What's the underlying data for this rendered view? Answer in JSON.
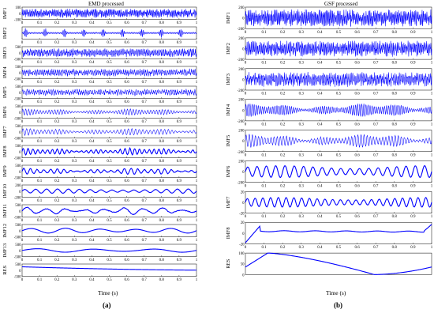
{
  "chart_data": [
    {
      "type": "line",
      "title": "EMD processed",
      "xlabel": "Time (s)",
      "caption": "(a)",
      "xlim": [
        0,
        1
      ],
      "xticks": [
        "0",
        "0.1",
        "0.2",
        "0.3",
        "0.4",
        "0.5",
        "0.6",
        "0.7",
        "0.8",
        "0.9",
        "1"
      ],
      "series_color": "#0000ff",
      "rows": [
        {
          "name": "IMF1",
          "ylim": [
            -100,
            100
          ],
          "yticks": [
            "100",
            "0",
            "-100"
          ],
          "cycles": 140,
          "amp": 0.75,
          "tick_labels": true,
          "signal": "noise"
        },
        {
          "name": "IMF2",
          "ylim": [
            -10,
            10
          ],
          "yticks": [],
          "cycles": 120,
          "amp": 0.85,
          "tick_labels": true,
          "signal": "bursts"
        },
        {
          "name": "IMF3",
          "ylim": [
            -500,
            500
          ],
          "yticks": [
            "500",
            "0",
            "-500"
          ],
          "cycles": 110,
          "amp": 0.7,
          "tick_labels": true,
          "signal": "noise"
        },
        {
          "name": "IMF4",
          "ylim": [
            -500,
            500
          ],
          "yticks": [
            "500",
            "0",
            "-500"
          ],
          "cycles": 95,
          "amp": 0.6,
          "tick_labels": true,
          "signal": "noise"
        },
        {
          "name": "IMF5",
          "ylim": [
            -500,
            500
          ],
          "yticks": [
            "500",
            "0",
            "-500"
          ],
          "cycles": 80,
          "amp": 0.55,
          "tick_labels": true,
          "signal": "noise"
        },
        {
          "name": "IMF6",
          "ylim": [
            -500,
            500
          ],
          "yticks": [
            "500",
            "0",
            "-500"
          ],
          "cycles": 60,
          "amp": 0.5,
          "tick_labels": true,
          "signal": "modulated"
        },
        {
          "name": "IMF7",
          "ylim": [
            -500,
            500
          ],
          "yticks": [
            "500",
            "0",
            "-500"
          ],
          "cycles": 48,
          "amp": 0.55,
          "tick_labels": true,
          "signal": "modulated"
        },
        {
          "name": "IMF8",
          "ylim": [
            -500,
            500
          ],
          "yticks": [
            "500",
            "0",
            "-500"
          ],
          "cycles": 36,
          "amp": 0.55,
          "tick_labels": true,
          "signal": "modulated"
        },
        {
          "name": "IMF9",
          "ylim": [
            -500,
            500
          ],
          "yticks": [
            "500",
            "0",
            "-500"
          ],
          "cycles": 26,
          "amp": 0.5,
          "tick_labels": true,
          "signal": "modulated"
        },
        {
          "name": "IMF10",
          "ylim": [
            -200,
            200
          ],
          "yticks": [
            "200",
            "0",
            "-200"
          ],
          "cycles": 16,
          "amp": 0.35,
          "tick_labels": true,
          "signal": "sine"
        },
        {
          "name": "IMF11",
          "ylim": [
            -500,
            500
          ],
          "yticks": [
            "500",
            "0",
            "-500"
          ],
          "cycles": 9,
          "amp": 0.6,
          "tick_labels": true,
          "signal": "modulated"
        },
        {
          "name": "IMF12",
          "ylim": [
            -500,
            500
          ],
          "yticks": [
            "500",
            "0",
            "-500"
          ],
          "cycles": 5,
          "amp": 0.4,
          "tick_labels": true,
          "signal": "sine"
        },
        {
          "name": "IMF13",
          "ylim": [
            -500,
            500
          ],
          "yticks": [
            "500",
            "0",
            "-500"
          ],
          "cycles": 3,
          "amp": 0.3,
          "tick_labels": true,
          "signal": "sine"
        },
        {
          "name": "RES",
          "ylim": [
            -500,
            500
          ],
          "yticks": [
            "500",
            "0",
            "-500"
          ],
          "cycles": 0.8,
          "amp": 0.5,
          "tick_labels": true,
          "signal": "trend"
        }
      ]
    },
    {
      "type": "line",
      "title": "GSF processed",
      "xlabel": "Time (s)",
      "caption": "(b)",
      "xlim": [
        0,
        1
      ],
      "xticks": [
        "0",
        "0.1",
        "0.2",
        "0.3",
        "0.4",
        "0.5",
        "0.6",
        "0.7",
        "0.8",
        "0.9",
        "1"
      ],
      "series_color": "#0000ff",
      "rows": [
        {
          "name": "IMF1",
          "ylim": [
            -200,
            200
          ],
          "yticks": [
            "200",
            "0",
            "-200"
          ],
          "cycles": 150,
          "amp": 0.85,
          "tick_labels": true,
          "signal": "noise"
        },
        {
          "name": "IMF2",
          "ylim": [
            -200,
            200
          ],
          "yticks": [
            "200",
            "0",
            "-200"
          ],
          "cycles": 140,
          "amp": 0.75,
          "tick_labels": true,
          "signal": "noise"
        },
        {
          "name": "IMF3",
          "ylim": [
            -200,
            200
          ],
          "yticks": [
            "200",
            "0",
            "-200"
          ],
          "cycles": 120,
          "amp": 0.7,
          "tick_labels": true,
          "signal": "noise"
        },
        {
          "name": "IMF4",
          "ylim": [
            -200,
            200
          ],
          "yticks": [
            "200",
            "0",
            "-200"
          ],
          "cycles": 90,
          "amp": 0.6,
          "tick_labels": true,
          "signal": "modulated"
        },
        {
          "name": "IMF5",
          "ylim": [
            -200,
            200
          ],
          "yticks": [
            "200",
            "0",
            "-200"
          ],
          "cycles": 60,
          "amp": 0.6,
          "tick_labels": true,
          "signal": "modulated"
        },
        {
          "name": "IMF6",
          "ylim": [
            -200,
            200
          ],
          "yticks": [
            "200",
            "0",
            "-200"
          ],
          "cycles": 20,
          "amp": 0.55,
          "tick_labels": true,
          "signal": "sine"
        },
        {
          "name": "IMF7",
          "ylim": [
            -20,
            20
          ],
          "yticks": [
            "20",
            "0",
            "-20"
          ],
          "cycles": 24,
          "amp": 0.45,
          "tick_labels": true,
          "signal": "sine"
        },
        {
          "name": "IMF8",
          "ylim": [
            -20,
            20
          ],
          "yticks": [
            "20",
            "0",
            "-20"
          ],
          "cycles": 1,
          "amp": 0.3,
          "tick_labels": true,
          "signal": "imf8"
        },
        {
          "name": "RES",
          "ylim": [
            0,
            100
          ],
          "yticks": [
            "100",
            "50",
            "0"
          ],
          "cycles": 1,
          "amp": 1,
          "tick_labels": false,
          "signal": "res_b"
        }
      ]
    }
  ]
}
